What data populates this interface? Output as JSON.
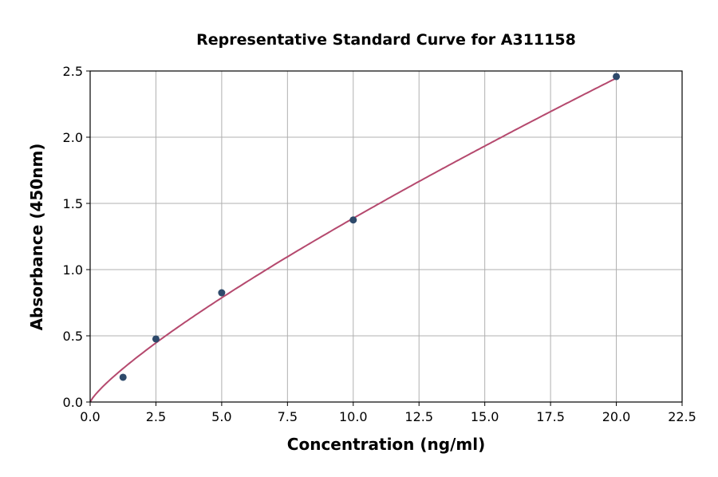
{
  "chart_data": {
    "type": "scatter",
    "title": "Representative Standard Curve for A311158",
    "xlabel": "Concentration (ng/ml)",
    "ylabel": "Absorbance (450nm)",
    "xlim": [
      0,
      22.5
    ],
    "ylim": [
      0,
      2.5
    ],
    "xticks": [
      "0.0",
      "2.5",
      "5.0",
      "7.5",
      "10.0",
      "12.5",
      "15.0",
      "17.5",
      "20.0",
      "22.5"
    ],
    "yticks": [
      "0.0",
      "0.5",
      "1.0",
      "1.5",
      "2.0",
      "2.5"
    ],
    "grid": true,
    "points": {
      "x": [
        1.25,
        2.5,
        5,
        10,
        20
      ],
      "y": [
        0.187,
        0.476,
        0.825,
        1.375,
        2.458
      ]
    },
    "fit_curve": {
      "model": "power",
      "a": 0.211,
      "b": 0.818,
      "x_range": [
        0,
        20
      ]
    },
    "colors": {
      "points": "#2e4a6b",
      "curve": "#b5496e",
      "grid": "#b0b0b0"
    }
  }
}
